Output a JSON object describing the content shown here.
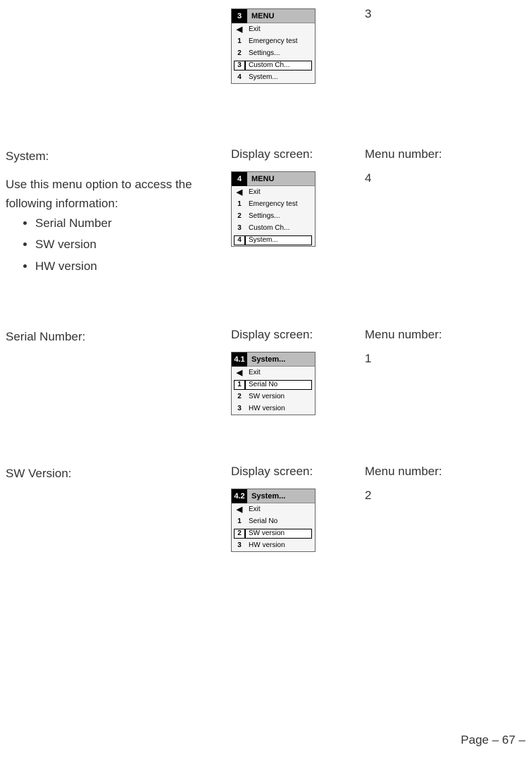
{
  "sections": [
    {
      "left_title": "",
      "intro": "",
      "bullets": [],
      "display_label": "",
      "menu_label": "",
      "menu_number": "3",
      "device": {
        "title_num": "3",
        "title_text": "MENU",
        "items": [
          {
            "num": "◀",
            "text": "Exit",
            "selected": false,
            "arrow": true
          },
          {
            "num": "1",
            "text": "Emergency test",
            "selected": false
          },
          {
            "num": "2",
            "text": "Settings...",
            "selected": false
          },
          {
            "num": "3",
            "text": "Custom Ch...",
            "selected": true
          },
          {
            "num": "4",
            "text": "System...",
            "selected": false
          }
        ]
      }
    },
    {
      "left_title": "System:",
      "intro": "Use this menu option to access the following information:",
      "bullets": [
        "Serial Number",
        "SW version",
        "HW version"
      ],
      "display_label": "Display screen:",
      "menu_label": "Menu number:",
      "menu_number": "4",
      "device": {
        "title_num": "4",
        "title_text": "MENU",
        "items": [
          {
            "num": "◀",
            "text": "Exit",
            "selected": false,
            "arrow": true
          },
          {
            "num": "1",
            "text": "Emergency test",
            "selected": false
          },
          {
            "num": "2",
            "text": "Settings...",
            "selected": false
          },
          {
            "num": "3",
            "text": "Custom Ch...",
            "selected": false
          },
          {
            "num": "4",
            "text": "System...",
            "selected": true
          }
        ]
      }
    },
    {
      "left_title": "Serial Number:",
      "intro": "",
      "bullets": [],
      "display_label": "Display screen:",
      "menu_label": "Menu number:",
      "menu_number": "1",
      "device": {
        "title_num": "4.1",
        "title_text": "System...",
        "items": [
          {
            "num": "◀",
            "text": "Exit",
            "selected": false,
            "arrow": true
          },
          {
            "num": "1",
            "text": "Serial No",
            "selected": true
          },
          {
            "num": "2",
            "text": "SW version",
            "selected": false
          },
          {
            "num": "3",
            "text": "HW version",
            "selected": false
          }
        ]
      }
    },
    {
      "left_title": "SW Version:",
      "intro": "",
      "bullets": [],
      "display_label": "Display screen:",
      "menu_label": "Menu number:",
      "menu_number": "2",
      "device": {
        "title_num": "4.2",
        "title_text": "System...",
        "items": [
          {
            "num": "◀",
            "text": "Exit",
            "selected": false,
            "arrow": true
          },
          {
            "num": "1",
            "text": "Serial No",
            "selected": false
          },
          {
            "num": "2",
            "text": "SW version",
            "selected": true
          },
          {
            "num": "3",
            "text": "HW version",
            "selected": false
          }
        ]
      }
    }
  ],
  "footer": "Page – 67 –"
}
